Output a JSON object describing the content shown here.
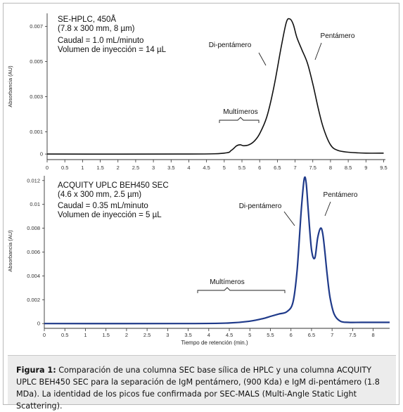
{
  "colors": {
    "top_trace": "#111111",
    "bottom_trace": "#1f3a8a",
    "caption_bg": "#ececec"
  },
  "chart_data": [
    {
      "type": "line",
      "title_lines": [
        "SE-HPLC, 450Å",
        "(7.8 x 300 mm, 8 µm)",
        "Caudal = 1.0 mL/minuto",
        "Volumen de inyección = 14 µL"
      ],
      "xlabel": "",
      "ylabel": "Absorbancia (AU)",
      "xlim": [
        0,
        9.55
      ],
      "ylim": [
        -0.0003,
        0.0076
      ],
      "x_ticks": [
        "0",
        "0.5",
        "1",
        "1.5",
        "2",
        "2.5",
        "3",
        "3.5",
        "4",
        "4.5",
        "5",
        "5.5",
        "6",
        "6.5",
        "7",
        "7.5",
        "8",
        "8.5",
        "9",
        "9.5"
      ],
      "y_ticks": [
        "0",
        "0.001",
        "0.003",
        "0.005",
        "0.007"
      ],
      "y_tick_values": [
        0,
        0.0012,
        0.0031,
        0.005,
        0.0069
      ],
      "annotations": [
        "Multímeros",
        "Di-pentámero",
        "Pentámero"
      ],
      "series": [
        {
          "name": "",
          "x": [
            0.0,
            4.0,
            5.0,
            5.2,
            5.35,
            5.45,
            5.55,
            5.7,
            5.85,
            6.0,
            6.2,
            6.4,
            6.6,
            6.75,
            6.85,
            6.95,
            7.05,
            7.2,
            7.35,
            7.5,
            7.65,
            7.8,
            8.0,
            8.2,
            8.5,
            9.0,
            9.5
          ],
          "values": [
            0.0,
            0.0,
            5e-05,
            0.0002,
            0.00045,
            0.0005,
            0.00045,
            0.0005,
            0.0007,
            0.0011,
            0.002,
            0.0036,
            0.0057,
            0.0071,
            0.0073,
            0.007,
            0.0063,
            0.0056,
            0.0049,
            0.0038,
            0.0025,
            0.0014,
            0.0005,
            0.0002,
            0.0001,
            5e-05,
            5e-05
          ]
        }
      ]
    },
    {
      "type": "line",
      "title_lines": [
        "ACQUITY UPLC BEH450 SEC",
        "(4.6 x 300 mm, 2.5 µm)",
        "Caudal = 0.35 mL/minuto",
        "Volumen de inyección = 5 µL"
      ],
      "xlabel": "Tiempo de retención (min.)",
      "ylabel": "Absorbancia (AU)",
      "xlim": [
        0,
        8.4
      ],
      "ylim": [
        -0.0004,
        0.0124
      ],
      "x_ticks": [
        "0",
        "0.5",
        "1",
        "1.5",
        "2",
        "2.5",
        "3",
        "3.5",
        "4",
        "4.5",
        "5",
        "5.5",
        "6",
        "6.5",
        "7",
        "7.5",
        "8"
      ],
      "y_ticks": [
        "0",
        "0.002",
        "0.004",
        "0.006",
        "0.008",
        "0.01",
        "0.012"
      ],
      "y_tick_values": [
        0,
        0.002,
        0.004,
        0.006,
        0.008,
        0.01,
        0.012
      ],
      "annotations": [
        "Multímeros",
        "Di-pentámero",
        "Pentámero"
      ],
      "series": [
        {
          "name": "",
          "x": [
            0.0,
            3.5,
            4.5,
            5.0,
            5.3,
            5.5,
            5.7,
            5.9,
            6.05,
            6.15,
            6.25,
            6.32,
            6.37,
            6.42,
            6.5,
            6.58,
            6.65,
            6.72,
            6.77,
            6.82,
            6.88,
            6.95,
            7.05,
            7.2,
            7.4,
            7.7,
            8.0,
            8.4
          ],
          "values": [
            0.0,
            0.0,
            5e-05,
            0.0002,
            0.0004,
            0.0006,
            0.0008,
            0.001,
            0.0018,
            0.0045,
            0.0095,
            0.0121,
            0.0118,
            0.0095,
            0.0062,
            0.0055,
            0.0072,
            0.008,
            0.0076,
            0.0062,
            0.0041,
            0.0022,
            0.0008,
            0.0002,
            0.0001,
            0.0001,
            0.0001,
            0.0001
          ]
        }
      ]
    }
  ],
  "caption": {
    "label": "Figura 1:",
    "text": " Comparación de una columna SEC base sílica de HPLC y una columna ACQUITY UPLC BEH450 SEC para la separación de IgM pentámero, (900 Kda) e IgM di-pentámero (1.8 MDa). La identidad de los picos fue confirmada por SEC-MALS (Multi-Angle Static Light Scattering)."
  }
}
